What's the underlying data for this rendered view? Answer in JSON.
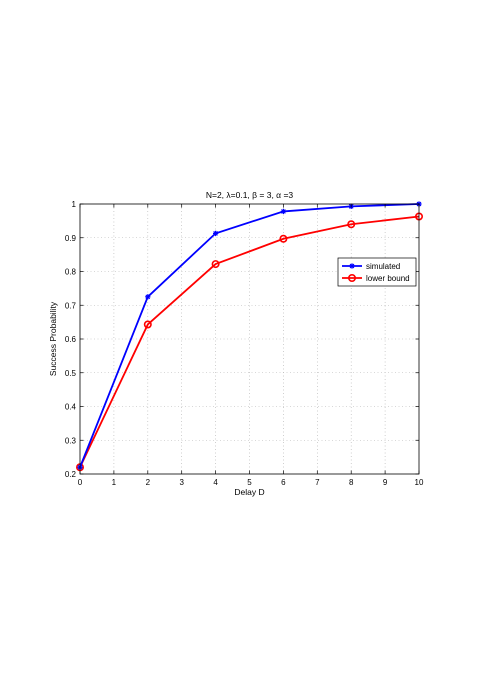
{
  "chart_data": {
    "type": "line",
    "title": "N=2, λ=0.1, β = 3, α =3",
    "xlabel": "Delay D",
    "ylabel": "Success Probability",
    "xlim": [
      0,
      10
    ],
    "ylim": [
      0.2,
      1
    ],
    "xticks": [
      0,
      1,
      2,
      3,
      4,
      5,
      6,
      7,
      8,
      9,
      10
    ],
    "yticks": [
      0.2,
      0.3,
      0.4,
      0.5,
      0.6,
      0.7,
      0.8,
      0.9,
      1
    ],
    "grid": true,
    "legend_position": "right",
    "series": [
      {
        "name": "simulated",
        "color": "#0000ff",
        "marker": "star",
        "x": [
          0,
          2,
          4,
          6,
          8,
          10
        ],
        "y": [
          0.22,
          0.725,
          0.913,
          0.978,
          0.993,
          1.0
        ]
      },
      {
        "name": "lower bound",
        "color": "#ff0000",
        "marker": "circle",
        "x": [
          0,
          2,
          4,
          6,
          8,
          10
        ],
        "y": [
          0.22,
          0.643,
          0.822,
          0.897,
          0.94,
          0.963
        ]
      }
    ]
  }
}
